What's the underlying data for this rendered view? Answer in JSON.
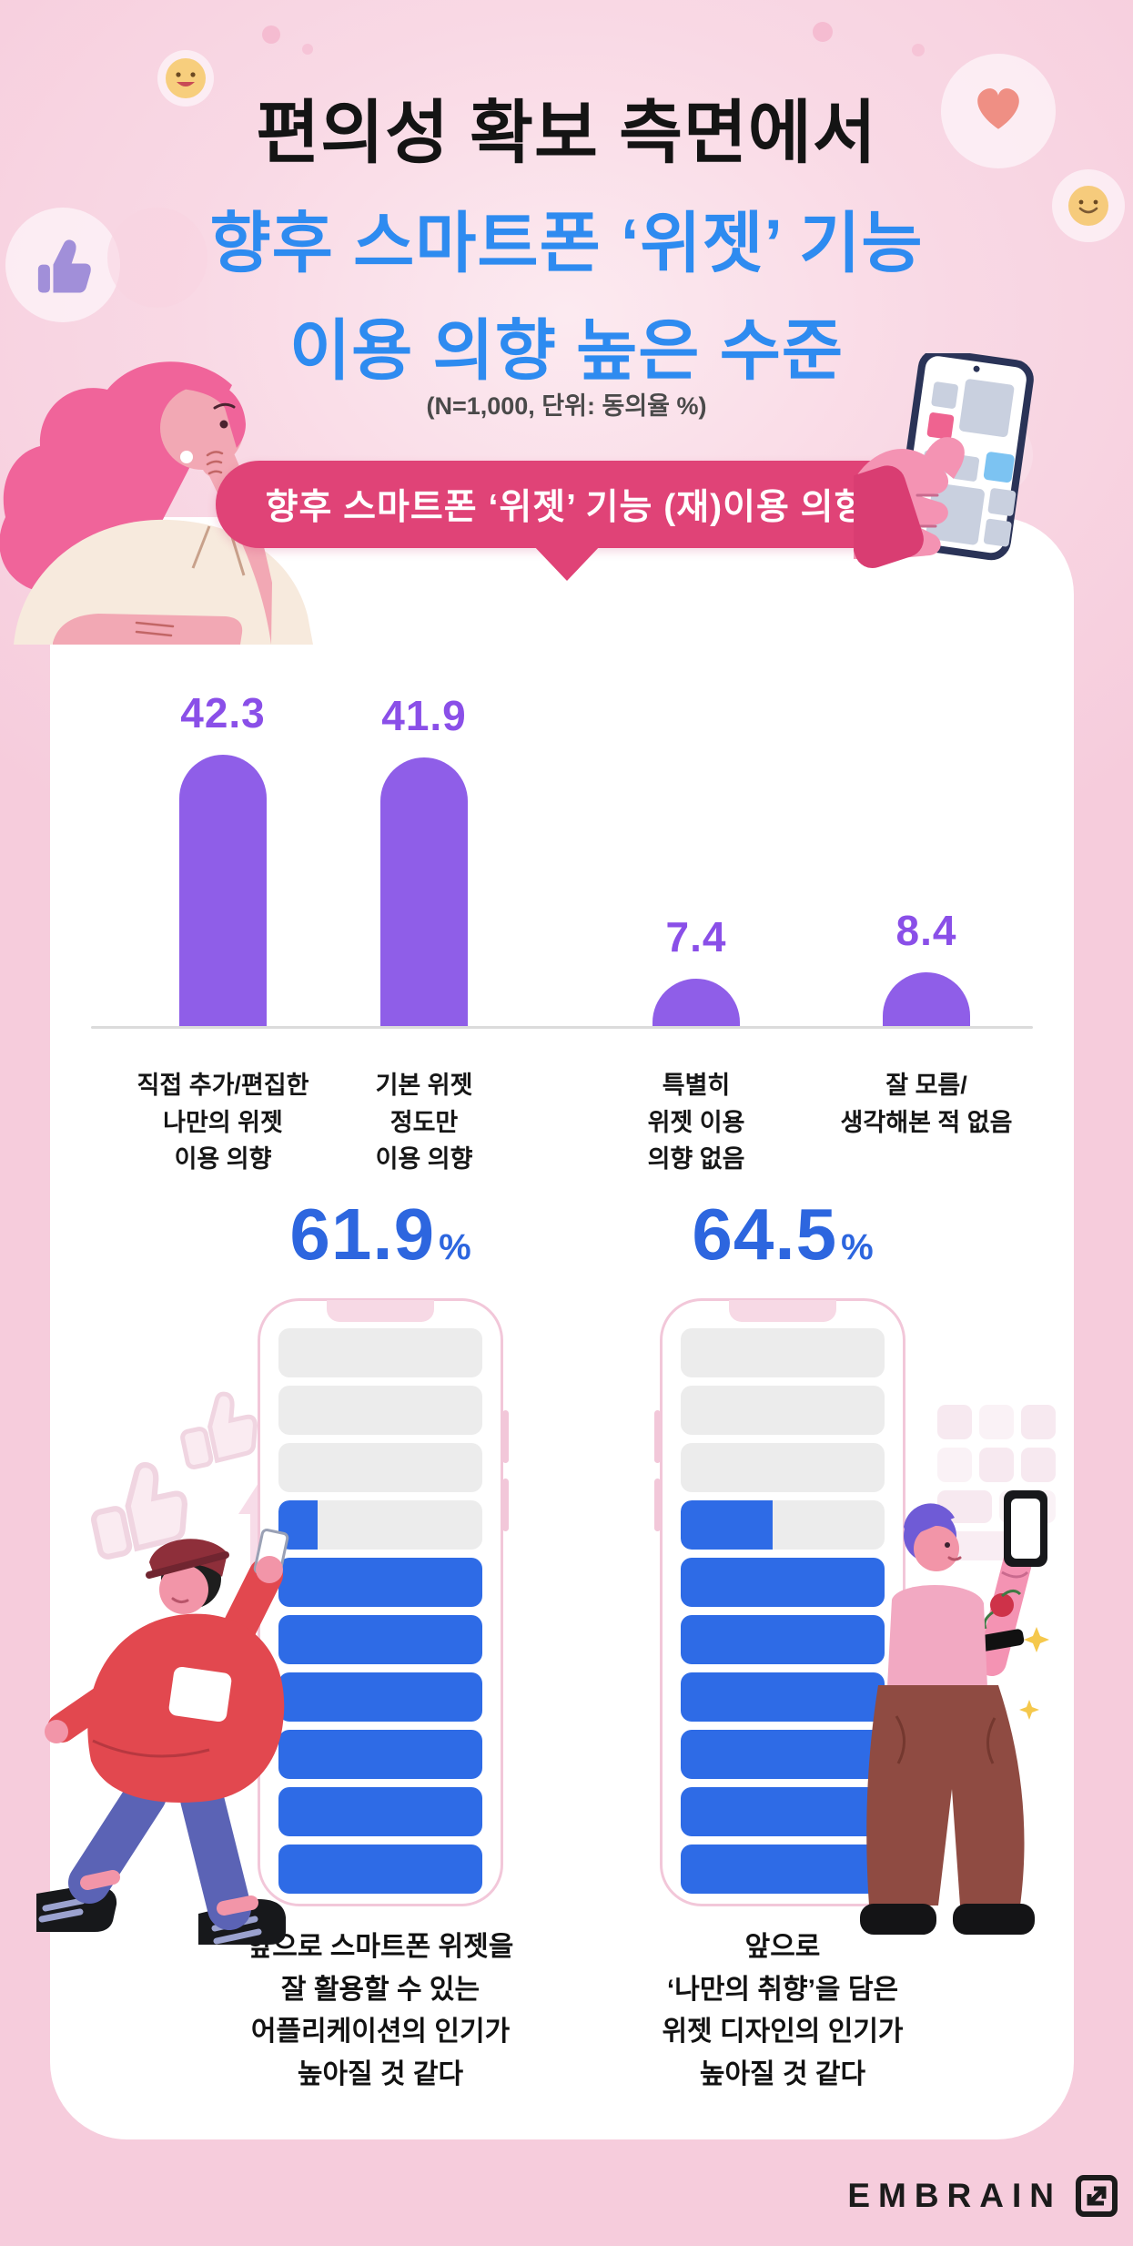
{
  "header": {
    "title_line1": "편의성 확보 측면에서",
    "title_line2": "향후 스마트폰 ‘위젯’ 기능",
    "title_line3": "이용 의향 높은 수준",
    "subtitle": "(N=1,000, 단위: 동의율 %)"
  },
  "banner": {
    "label": "향후 스마트폰 ‘위젯’ 기능 (재)이용 의향"
  },
  "chart_data": {
    "type": "bar",
    "title": "향후 스마트폰 ‘위젯’ 기능 (재)이용 의향",
    "unit_note": "(N=1,000, 단위: 동의율 %)",
    "categories": [
      "직접 추가/편집한 나만의 위젯 이용 의향",
      "기본 위젯 정도만 이용 의향",
      "특별히 위젯 이용 의향 없음",
      "잘 모름/ 생각해본 적 없음"
    ],
    "category_lines": [
      [
        "직접 추가/편집한",
        "나만의 위젯",
        "이용 의향"
      ],
      [
        "기본 위젯",
        "정도만",
        "이용 의향"
      ],
      [
        "특별히",
        "위젯 이용",
        "의향 없음"
      ],
      [
        "잘 모름/",
        "생각해본 적 없음"
      ]
    ],
    "values": [
      42.3,
      41.9,
      7.4,
      8.4
    ],
    "ylim": [
      0,
      50
    ],
    "grid": false,
    "legend": false,
    "bar_color": "#8F5EE8",
    "value_label_color": "#8A4FE8"
  },
  "stats": [
    {
      "value": "61.9",
      "unit": "%",
      "percent": 61.9,
      "caption_lines": [
        "앞으로 스마트폰 위젯을",
        "잘 활용할 수 있는",
        "어플리케이션의 인기가",
        "높아질 것 같다"
      ]
    },
    {
      "value": "64.5",
      "unit": "%",
      "percent": 64.5,
      "caption_lines": [
        "앞으로",
        "‘나만의 취향’을 담은",
        "위젯 디자인의 인기가",
        "높아질 것 같다"
      ]
    }
  ],
  "phone_visual": {
    "segments": 10,
    "segment_gray": "#ECECEC",
    "fill_blue": "#2E6BE6",
    "border_pink": "#F2C7D9"
  },
  "decor": {
    "icons": [
      "thumbs-up-icon",
      "smiley-face-icon",
      "heart-icon",
      "smiley-face-icon",
      "faint-thumbs-up-icon",
      "up-arrow-icon",
      "widget-grid-decoration"
    ]
  },
  "footer": {
    "brand": "EMBRAIN"
  },
  "colors": {
    "background": "#F8D2E0",
    "card": "#FFFFFF",
    "banner": "#E04377",
    "title_blue": "#2E8BF0",
    "stat_blue": "#2D66DF",
    "bar_purple": "#8F5EE8"
  }
}
